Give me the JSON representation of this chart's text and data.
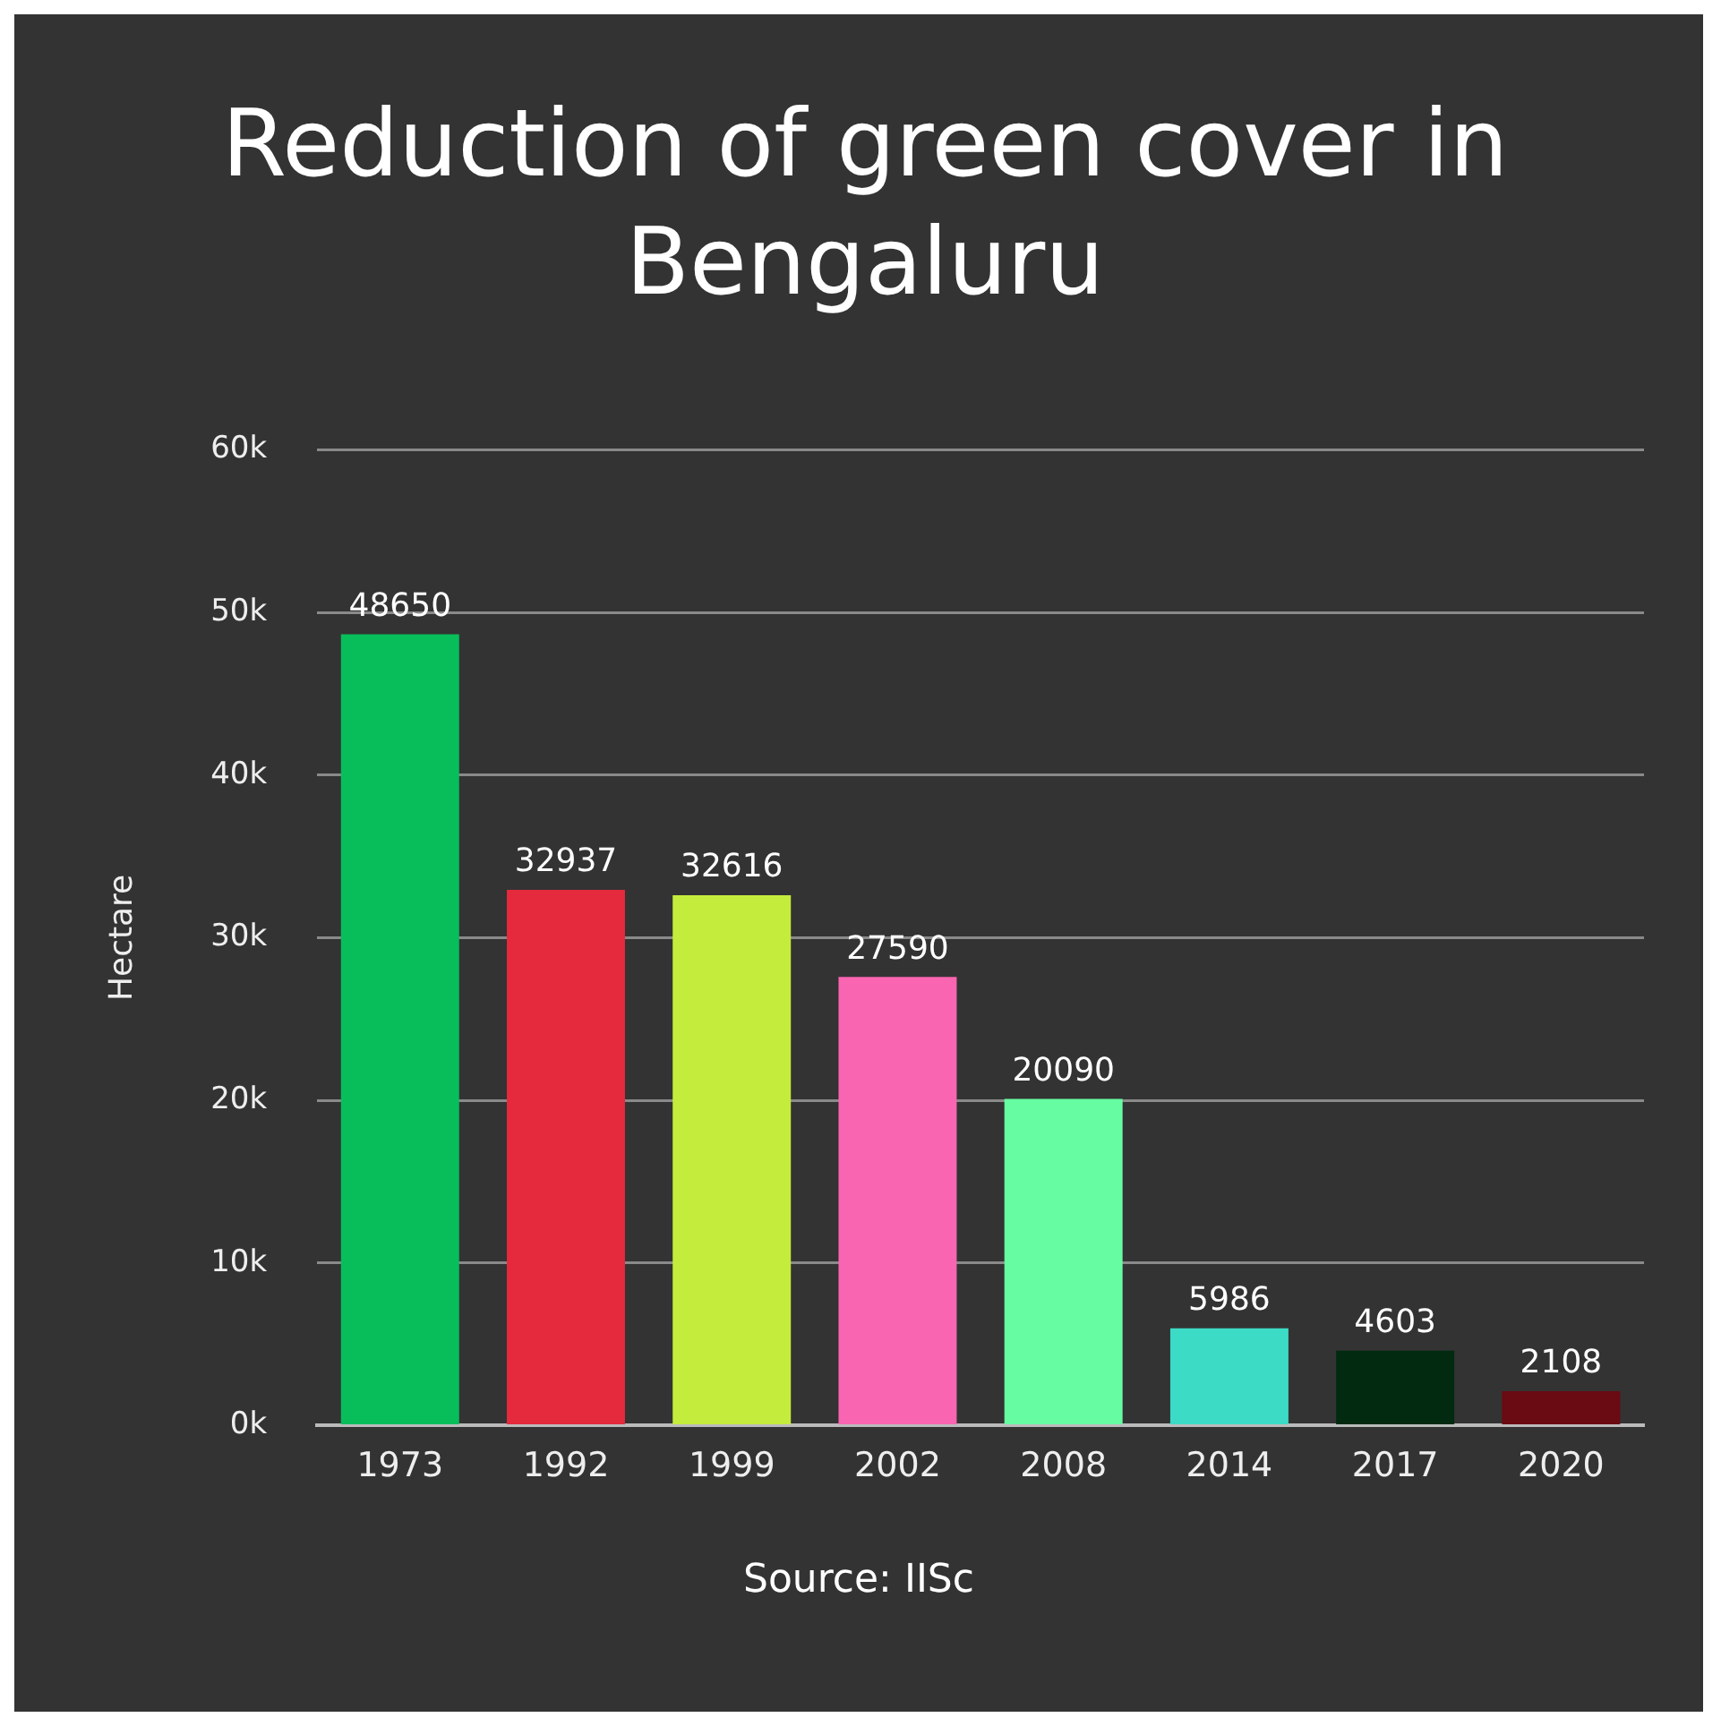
{
  "chart_data": {
    "type": "bar",
    "title": "Reduction of green cover in Bengaluru",
    "ylabel": "Hectare",
    "categories": [
      "1973",
      "1992",
      "1999",
      "2002",
      "2008",
      "2014",
      "2017",
      "2020"
    ],
    "values": [
      48650,
      32937,
      32616,
      27590,
      20090,
      5986,
      4603,
      2108
    ],
    "colors": [
      "#07be5a",
      "#e42a3c",
      "#c4ec3c",
      "#f965b1",
      "#66fda2",
      "#3cdbc6",
      "#012a10",
      "#6a0a12"
    ],
    "ylim": [
      0,
      60000
    ],
    "yticks": [
      {
        "value": 0,
        "label": "0k"
      },
      {
        "value": 10000,
        "label": "10k"
      },
      {
        "value": 20000,
        "label": "20k"
      },
      {
        "value": 30000,
        "label": "30k"
      },
      {
        "value": 40000,
        "label": "40k"
      },
      {
        "value": 50000,
        "label": "50k"
      },
      {
        "value": 60000,
        "label": "60k"
      }
    ],
    "grid": "y",
    "data_labels": true,
    "legend": false,
    "annotations": [
      "Source: IISc"
    ]
  }
}
